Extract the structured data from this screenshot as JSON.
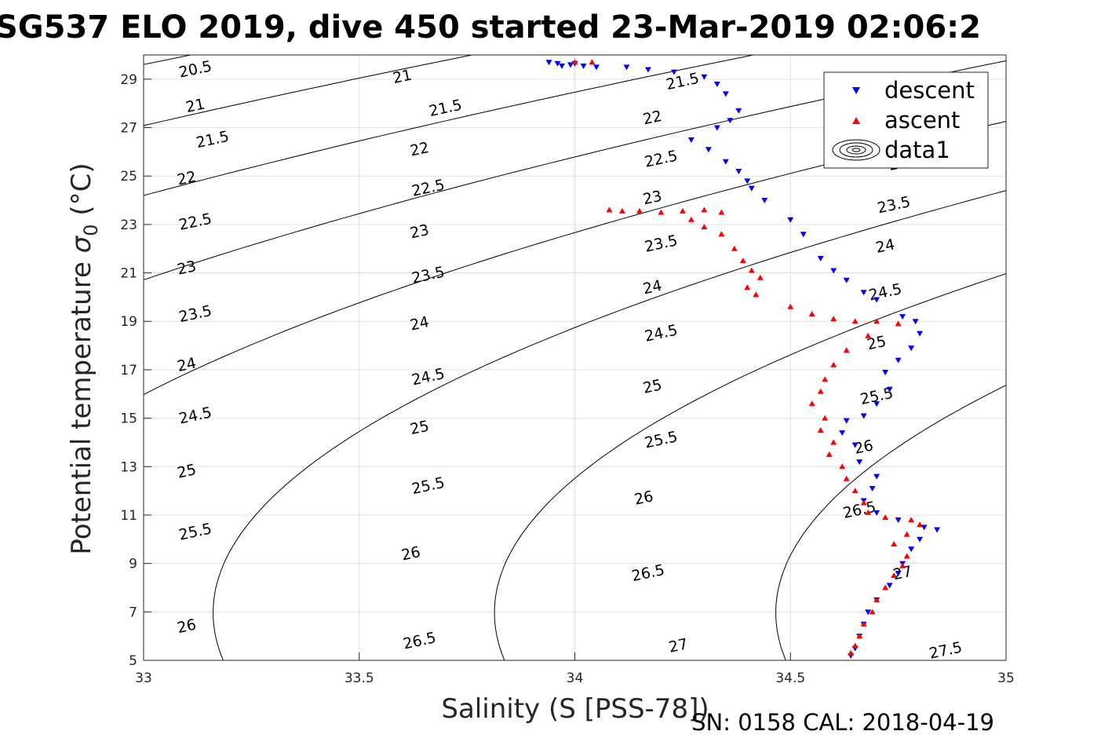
{
  "chart_data": {
    "type": "scatter",
    "title": "SG537 ELO 2019, dive 450 started 23-Mar-2019 02:06:2",
    "xlabel": "Salinity (S [PSS-78])",
    "ylabel_main": "Potential temperature ",
    "ylabel_sym": "σ",
    "ylabel_sub": "0",
    "ylabel_unit": " (°C)",
    "footer": "SN: 0158  CAL: 2018-04-19",
    "xlim": [
      33,
      35
    ],
    "ylim": [
      5,
      30
    ],
    "x_ticks": [
      33,
      33.5,
      34,
      34.5,
      35
    ],
    "x_tick_labels": [
      "33",
      "33.5",
      "34",
      "34.5",
      "35"
    ],
    "y_ticks": [
      5,
      7,
      9,
      11,
      13,
      15,
      17,
      19,
      21,
      23,
      25,
      27,
      29
    ],
    "y_tick_labels": [
      "5",
      "7",
      "9",
      "11",
      "13",
      "15",
      "17",
      "19",
      "21",
      "23",
      "25",
      "27",
      "29"
    ],
    "grid": true,
    "legend_position": "top-right",
    "legend": [
      "descent",
      "ascent",
      "data1"
    ],
    "contour_levels": [
      20.5,
      21,
      21.5,
      22,
      22.5,
      23,
      23.5,
      24,
      24.5,
      25,
      25.5,
      26,
      26.5,
      27,
      27.5
    ],
    "contour_labels": [
      {
        "text": "20.5",
        "x": 33.12,
        "y": 29.4
      },
      {
        "text": "21",
        "x": 33.12,
        "y": 27.9
      },
      {
        "text": "21.5",
        "x": 33.16,
        "y": 26.5
      },
      {
        "text": "22",
        "x": 33.1,
        "y": 24.9
      },
      {
        "text": "22.5",
        "x": 33.12,
        "y": 23.1
      },
      {
        "text": "23",
        "x": 33.1,
        "y": 21.2
      },
      {
        "text": "23.5",
        "x": 33.12,
        "y": 19.3
      },
      {
        "text": "24",
        "x": 33.1,
        "y": 17.2
      },
      {
        "text": "24.5",
        "x": 33.12,
        "y": 15.1
      },
      {
        "text": "25",
        "x": 33.1,
        "y": 12.8
      },
      {
        "text": "25.5",
        "x": 33.12,
        "y": 10.3
      },
      {
        "text": "26",
        "x": 33.1,
        "y": 6.4
      },
      {
        "text": "21",
        "x": 33.6,
        "y": 29.1
      },
      {
        "text": "21.5",
        "x": 33.7,
        "y": 27.8
      },
      {
        "text": "22",
        "x": 33.64,
        "y": 26.1
      },
      {
        "text": "22.5",
        "x": 33.66,
        "y": 24.5
      },
      {
        "text": "23",
        "x": 33.64,
        "y": 22.7
      },
      {
        "text": "23.5",
        "x": 33.66,
        "y": 20.9
      },
      {
        "text": "24",
        "x": 33.64,
        "y": 18.9
      },
      {
        "text": "24.5",
        "x": 33.66,
        "y": 16.7
      },
      {
        "text": "25",
        "x": 33.64,
        "y": 14.6
      },
      {
        "text": "25.5",
        "x": 33.66,
        "y": 12.2
      },
      {
        "text": "26",
        "x": 33.62,
        "y": 9.4
      },
      {
        "text": "26.5",
        "x": 33.64,
        "y": 5.8
      },
      {
        "text": "21.5",
        "x": 34.25,
        "y": 28.9
      },
      {
        "text": "22",
        "x": 34.18,
        "y": 27.4
      },
      {
        "text": "22.5",
        "x": 34.2,
        "y": 25.7
      },
      {
        "text": "23",
        "x": 34.18,
        "y": 24.1
      },
      {
        "text": "23.5",
        "x": 34.2,
        "y": 22.2
      },
      {
        "text": "24",
        "x": 34.18,
        "y": 20.4
      },
      {
        "text": "24.5",
        "x": 34.2,
        "y": 18.5
      },
      {
        "text": "25",
        "x": 34.18,
        "y": 16.3
      },
      {
        "text": "25.5",
        "x": 34.2,
        "y": 14.1
      },
      {
        "text": "26",
        "x": 34.16,
        "y": 11.7
      },
      {
        "text": "26.5",
        "x": 34.17,
        "y": 8.6
      },
      {
        "text": "27",
        "x": 34.24,
        "y": 5.6
      },
      {
        "text": "23",
        "x": 34.75,
        "y": 25.5
      },
      {
        "text": "23.5",
        "x": 34.74,
        "y": 23.8
      },
      {
        "text": "24",
        "x": 34.72,
        "y": 22.1
      },
      {
        "text": "24.5",
        "x": 34.72,
        "y": 20.2
      },
      {
        "text": "25",
        "x": 34.7,
        "y": 18.1
      },
      {
        "text": "25.5",
        "x": 34.7,
        "y": 15.9
      },
      {
        "text": "26",
        "x": 34.67,
        "y": 13.8
      },
      {
        "text": "26.5",
        "x": 34.66,
        "y": 11.2
      },
      {
        "text": "27",
        "x": 34.76,
        "y": 8.6
      },
      {
        "text": "27.5",
        "x": 34.86,
        "y": 5.4
      }
    ],
    "series": [
      {
        "name": "descent",
        "color": "#0000ff",
        "marker": "triangle-down",
        "points": [
          [
            33.94,
            29.7
          ],
          [
            33.96,
            29.65
          ],
          [
            33.99,
            29.6
          ],
          [
            34.02,
            29.55
          ],
          [
            34.05,
            29.5
          ],
          [
            33.97,
            29.55
          ],
          [
            34.0,
            29.65
          ],
          [
            34.12,
            29.5
          ],
          [
            34.17,
            29.4
          ],
          [
            34.23,
            29.3
          ],
          [
            34.3,
            29.1
          ],
          [
            34.33,
            28.8
          ],
          [
            34.35,
            28.4
          ],
          [
            34.38,
            27.7
          ],
          [
            34.36,
            27.3
          ],
          [
            34.33,
            27.0
          ],
          [
            34.27,
            26.5
          ],
          [
            34.31,
            26.1
          ],
          [
            34.35,
            25.6
          ],
          [
            34.38,
            25.2
          ],
          [
            34.4,
            24.8
          ],
          [
            34.41,
            24.5
          ],
          [
            34.44,
            24.0
          ],
          [
            34.5,
            23.2
          ],
          [
            34.53,
            22.6
          ],
          [
            34.57,
            21.6
          ],
          [
            34.6,
            21.1
          ],
          [
            34.63,
            20.7
          ],
          [
            34.67,
            20.2
          ],
          [
            34.7,
            19.9
          ],
          [
            34.76,
            19.2
          ],
          [
            34.79,
            19.0
          ],
          [
            34.8,
            18.5
          ],
          [
            34.78,
            17.9
          ],
          [
            34.75,
            17.4
          ],
          [
            34.72,
            16.9
          ],
          [
            34.73,
            16.2
          ],
          [
            34.7,
            15.6
          ],
          [
            34.67,
            15.1
          ],
          [
            34.63,
            14.9
          ],
          [
            34.62,
            14.4
          ],
          [
            34.65,
            13.9
          ],
          [
            34.66,
            13.2
          ],
          [
            34.7,
            12.6
          ],
          [
            34.69,
            12.1
          ],
          [
            34.67,
            11.6
          ],
          [
            34.7,
            11.1
          ],
          [
            34.75,
            10.8
          ],
          [
            34.81,
            10.5
          ],
          [
            34.84,
            10.4
          ],
          [
            34.8,
            10.0
          ],
          [
            34.78,
            9.6
          ],
          [
            34.76,
            9.0
          ],
          [
            34.75,
            8.6
          ],
          [
            34.73,
            8.1
          ],
          [
            34.7,
            7.5
          ],
          [
            34.68,
            7.0
          ],
          [
            34.67,
            6.5
          ],
          [
            34.66,
            6.0
          ],
          [
            34.65,
            5.5
          ],
          [
            34.64,
            5.2
          ]
        ]
      },
      {
        "name": "ascent",
        "color": "#ff0000",
        "marker": "triangle-up",
        "points": [
          [
            34.0,
            29.7
          ],
          [
            34.04,
            29.7
          ],
          [
            34.08,
            23.6
          ],
          [
            34.11,
            23.55
          ],
          [
            34.15,
            23.55
          ],
          [
            34.2,
            23.5
          ],
          [
            34.25,
            23.55
          ],
          [
            34.3,
            23.6
          ],
          [
            34.34,
            23.5
          ],
          [
            34.27,
            23.2
          ],
          [
            34.3,
            22.9
          ],
          [
            34.34,
            22.6
          ],
          [
            34.37,
            22.0
          ],
          [
            34.39,
            21.5
          ],
          [
            34.41,
            21.1
          ],
          [
            34.43,
            20.8
          ],
          [
            34.4,
            20.4
          ],
          [
            34.42,
            20.1
          ],
          [
            34.5,
            19.6
          ],
          [
            34.55,
            19.3
          ],
          [
            34.6,
            19.1
          ],
          [
            34.65,
            19.0
          ],
          [
            34.7,
            19.0
          ],
          [
            34.75,
            18.9
          ],
          [
            34.68,
            18.4
          ],
          [
            34.63,
            17.8
          ],
          [
            34.6,
            17.2
          ],
          [
            34.58,
            16.6
          ],
          [
            34.57,
            16.1
          ],
          [
            34.55,
            15.6
          ],
          [
            34.58,
            15.0
          ],
          [
            34.57,
            14.5
          ],
          [
            34.6,
            14.0
          ],
          [
            34.59,
            13.5
          ],
          [
            34.62,
            13.0
          ],
          [
            34.63,
            12.5
          ],
          [
            34.65,
            12.0
          ],
          [
            34.67,
            11.5
          ],
          [
            34.68,
            11.1
          ],
          [
            34.72,
            10.9
          ],
          [
            34.78,
            10.8
          ],
          [
            34.8,
            10.6
          ],
          [
            34.77,
            10.2
          ],
          [
            34.74,
            9.8
          ],
          [
            34.77,
            9.3
          ],
          [
            34.76,
            8.9
          ],
          [
            34.74,
            8.5
          ],
          [
            34.72,
            8.0
          ],
          [
            34.7,
            7.5
          ],
          [
            34.69,
            7.0
          ],
          [
            34.67,
            6.5
          ],
          [
            34.66,
            6.0
          ],
          [
            34.65,
            5.6
          ],
          [
            34.64,
            5.3
          ]
        ]
      }
    ]
  }
}
